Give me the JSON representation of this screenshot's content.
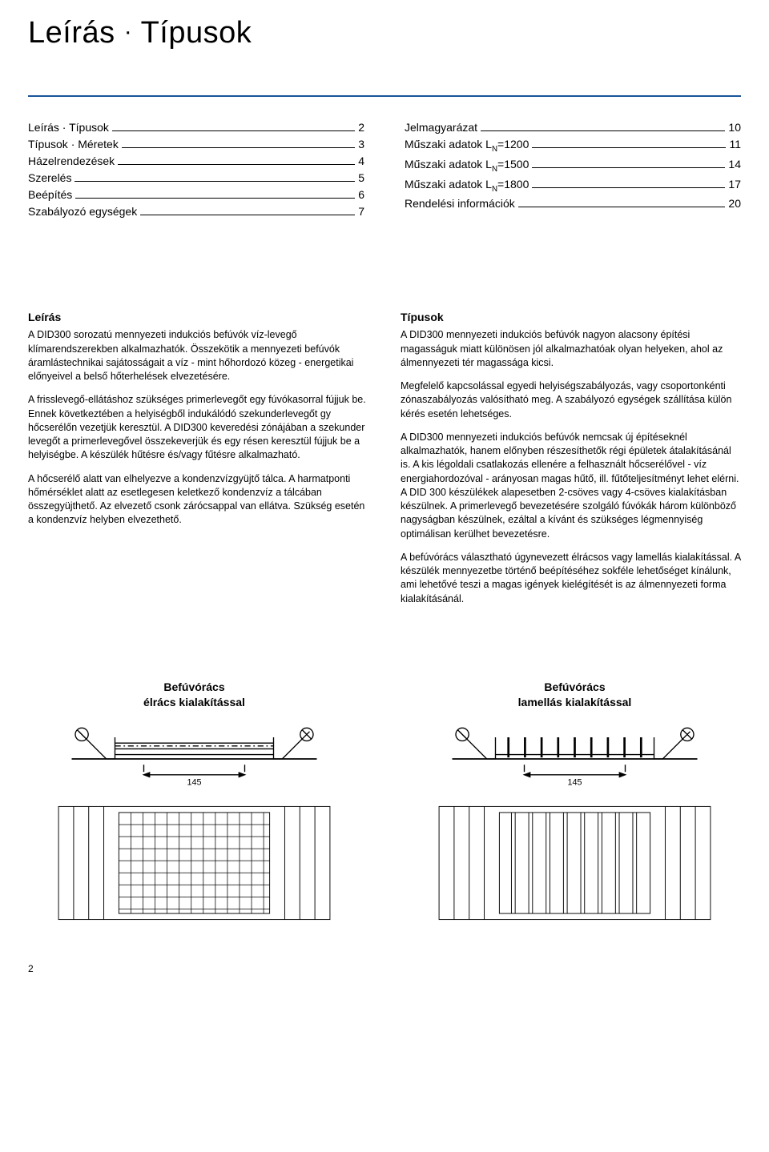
{
  "title_part1": "Leírás",
  "title_dot": "·",
  "title_part2": "Típusok",
  "toc_left": [
    {
      "label": "Leírás · Típusok",
      "page": "2"
    },
    {
      "label": "Típusok · Méretek",
      "page": "3"
    },
    {
      "label": "Házelrendezések",
      "page": "4"
    },
    {
      "label": "Szerelés",
      "page": "5"
    },
    {
      "label": "Beépítés",
      "page": "6"
    },
    {
      "label": "Szabályozó egységek",
      "page": "7"
    }
  ],
  "toc_right": [
    {
      "label": "Jelmagyarázat",
      "page": "10"
    },
    {
      "label": "Műszaki adatok L<sub>N</sub>=1200",
      "page": "11"
    },
    {
      "label": "Műszaki adatok L<sub>N</sub>=1500",
      "page": "14"
    },
    {
      "label": "Műszaki adatok L<sub>N</sub>=1800",
      "page": "17"
    },
    {
      "label": "Rendelési információk",
      "page": "20"
    }
  ],
  "col_left": {
    "heading": "Leírás",
    "p1": "A DID300 sorozatú mennyezeti indukciós befúvók víz-levegő klímarendszerekben alkalmazhatók. Összekötik a mennyezeti befúvók áramlástechnikai sajátosságait a víz - mint hőhordozó közeg - energetikai előnyeivel a belső hőterhelések elvezetésére.",
    "p2": "A frisslevegő-ellátáshoz szükséges primerlevegőt egy fúvókasorral fújjuk be. Ennek következtében a helyiségből indukálódó szekunderlevegőt gy hőcserélőn vezetjük keresztül. A DID300 keveredési zónájában a szekunder levegőt a primerlevegővel összekeverjük és egy résen keresztül fújjuk be a helyiségbe. A készülék hűtésre és/vagy fűtésre alkalmazható.",
    "p3": "A hőcserélő alatt van elhelyezve a kondenzvízgyüjtő tálca. A harmatponti hőmérséklet alatt az esetlegesen keletkező kondenzvíz a tálcában összegyüjthető. Az elvezető csonk zárócsappal van ellátva. Szükség esetén a kondenzvíz helyben elvezethető."
  },
  "col_right": {
    "heading": "Típusok",
    "p1": "A DID300 mennyezeti indukciós befúvók nagyon alacsony építési magasságuk miatt különösen jól alkalmazhatóak olyan helyeken, ahol az álmennyezeti tér magassága kicsi.",
    "p2": "Megfelelő kapcsolással egyedi helyiségszabályozás, vagy csoportonkénti zónaszabályozás valósítható meg. A szabályozó egységek szállítása külön kérés esetén lehetséges.",
    "p3": "A DID300 mennyezeti indukciós befúvók nemcsak új építéseknél alkalmazhatók, hanem előnyben részesíthetők régi épületek átalakításánál is. A kis légoldali csatlakozás ellenére a felhasznált hőcserélővel - víz energiahordozóval - arányosan magas hűtő, ill. fűtőteljesítményt lehet elérni. A DID 300 készülékek alapesetben 2-csöves vagy 4-csöves kialakításban készülnek. A primerlevegő bevezetésére szolgáló fúvókák három különböző nagyságban készülnek, ezáltal a kívánt és szükséges légmennyiség optimálisan kerülhet bevezetésre.",
    "p4": "A befúvórács választható úgynevezett élrácsos vagy lamellás kialakítással. A készülék mennyezetbe történő beépítéséhez sokféle lehetőséget kínálunk, ami lehetővé teszi a magas igények kielégítését is az álmennyezeti forma kialakításánál."
  },
  "diagram_left": {
    "caption_line1": "Befúvórács",
    "caption_line2": "élrács kialakítással",
    "dim": "145"
  },
  "diagram_right": {
    "caption_line1": "Befúvórács",
    "caption_line2": "lamellás kialakítással",
    "dim": "145"
  },
  "page_number": "2",
  "colors": {
    "rule": "#1a5599",
    "line": "#000000",
    "bg": "#ffffff"
  }
}
